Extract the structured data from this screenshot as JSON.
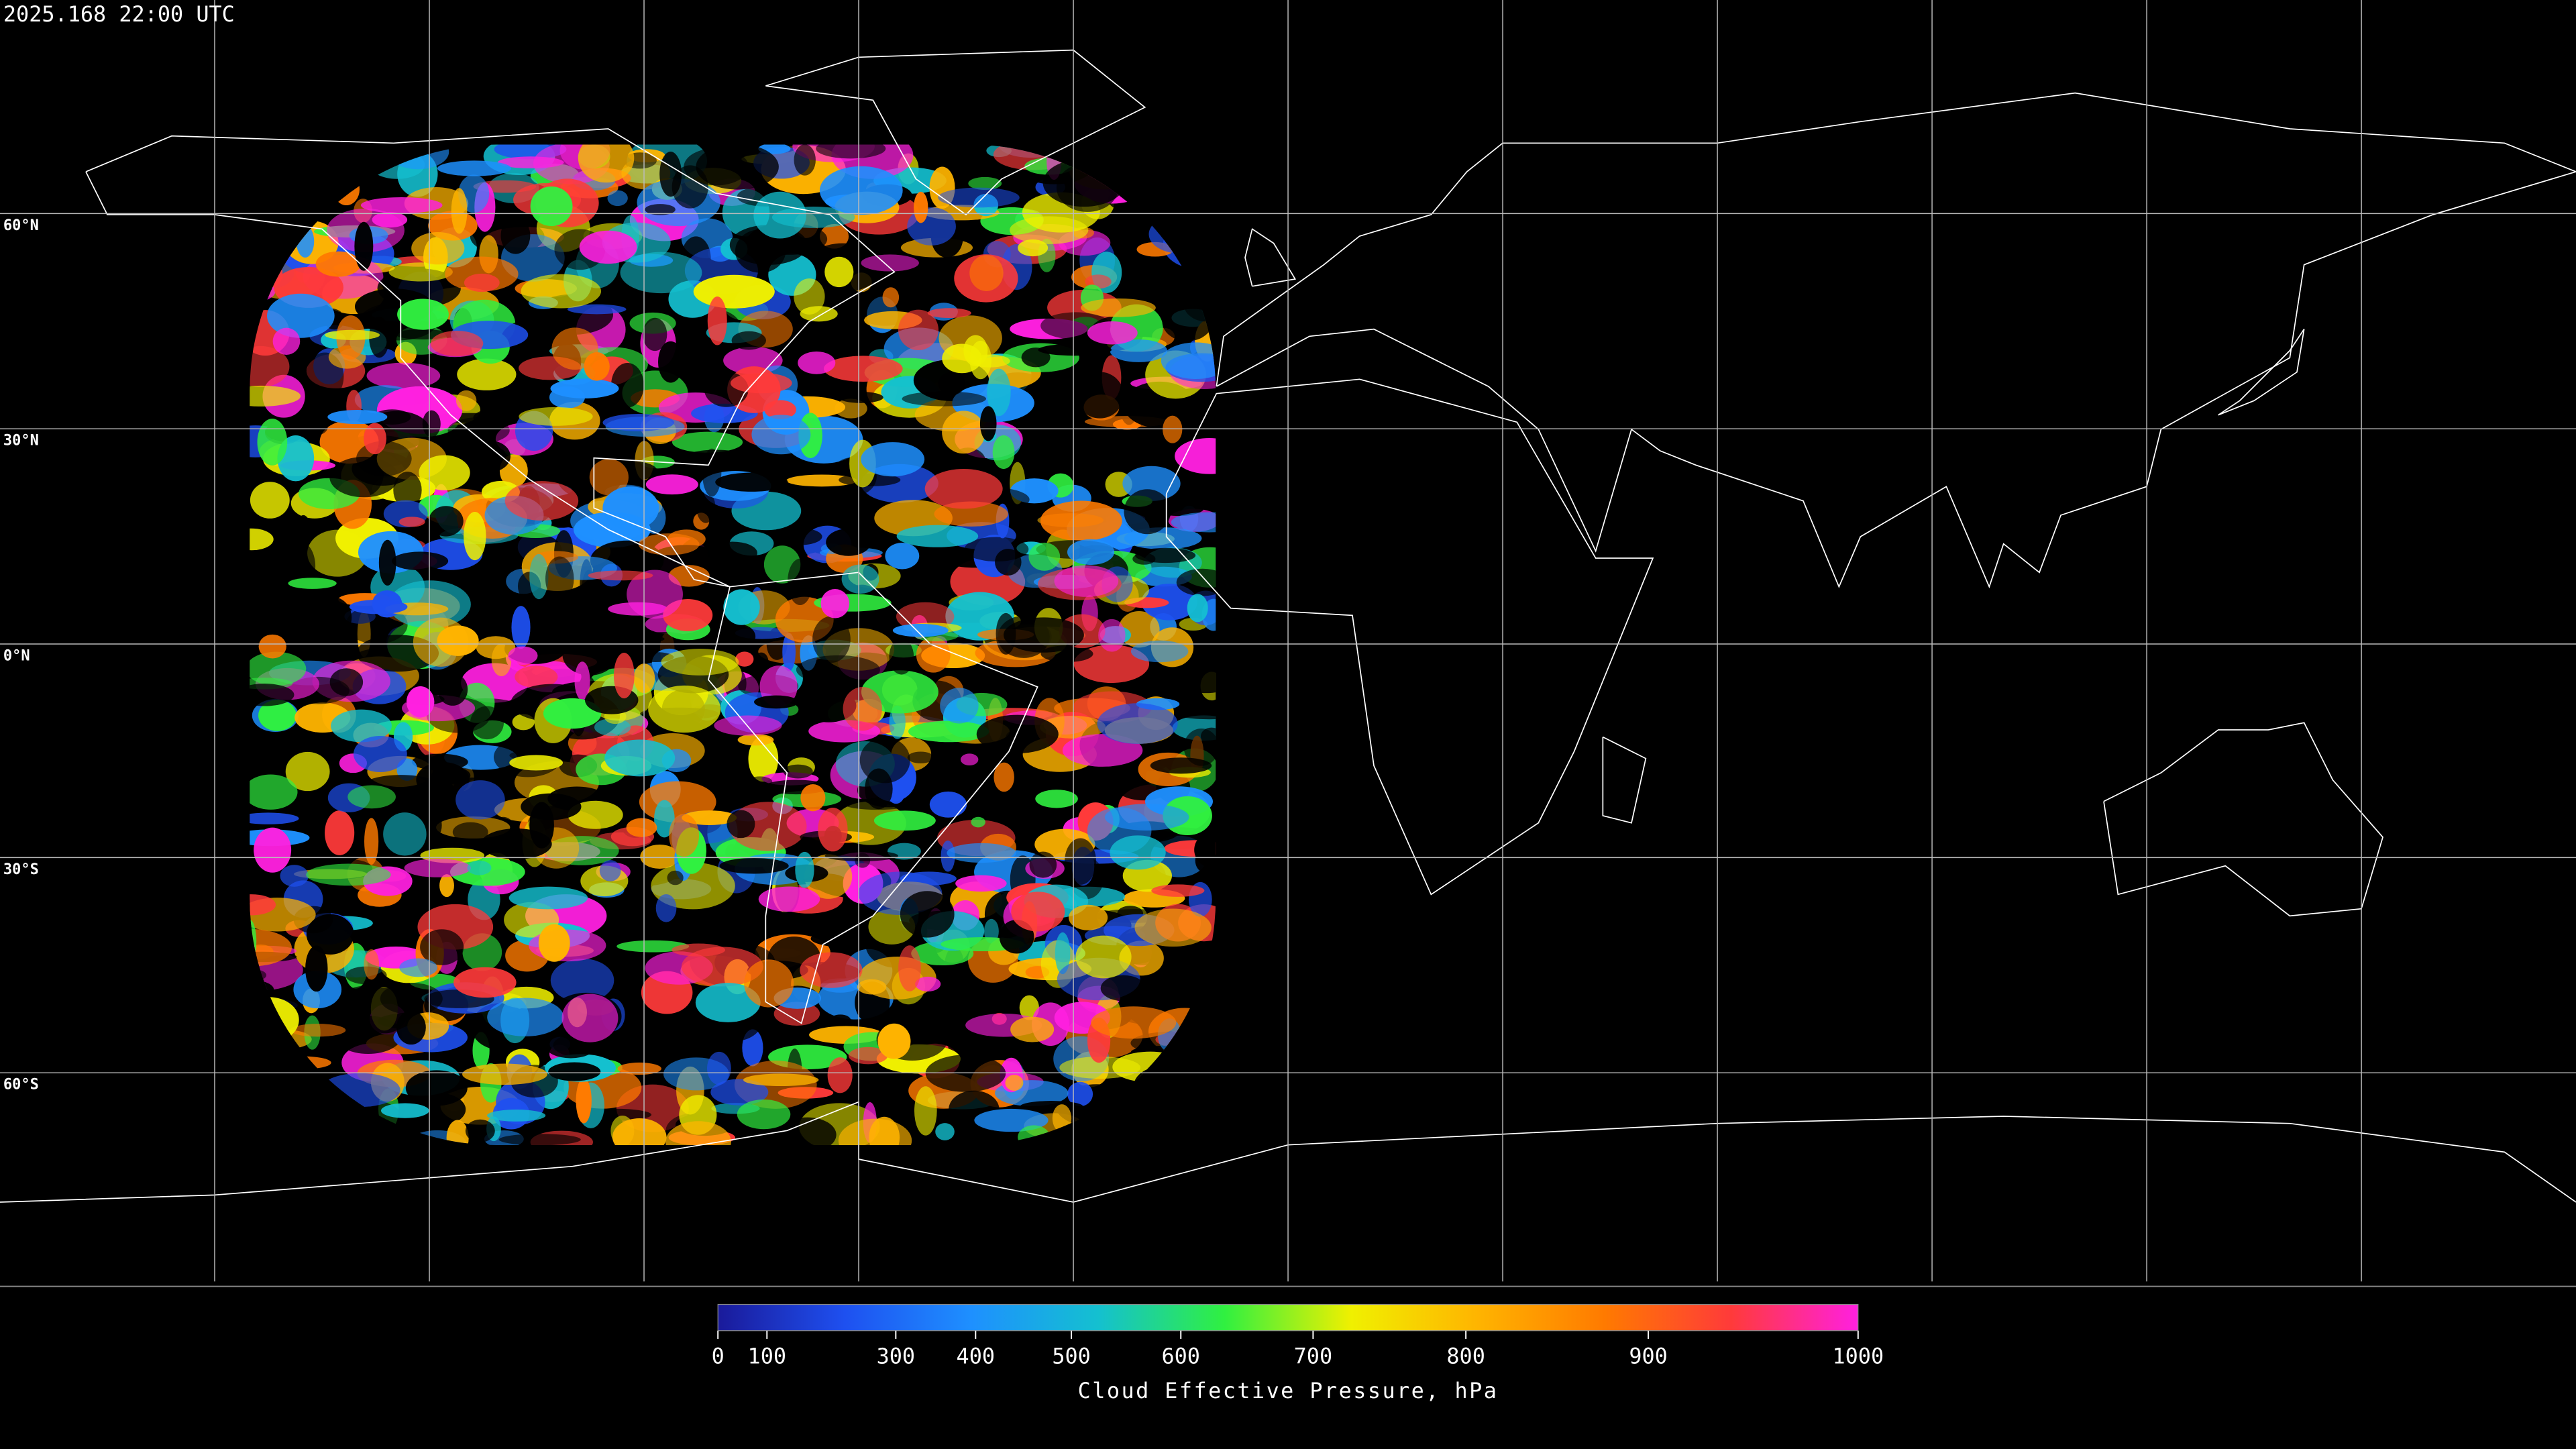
{
  "header": {
    "timestamp": "2025.168 22:00 UTC"
  },
  "map": {
    "lat_labels": [
      "60°N",
      "30°N",
      "0°N",
      "30°S",
      "60°S"
    ]
  },
  "colorbar": {
    "label": "Cloud Effective Pressure, hPa",
    "ticks": [
      0,
      100,
      300,
      400,
      500,
      600,
      700,
      800,
      900,
      1000
    ],
    "colors": [
      "#1a1a9a",
      "#1e50f0",
      "#1e90ff",
      "#14c0d0",
      "#30f040",
      "#f0f000",
      "#ffb400",
      "#ff7a00",
      "#ff3a3a",
      "#ff20e0"
    ]
  }
}
